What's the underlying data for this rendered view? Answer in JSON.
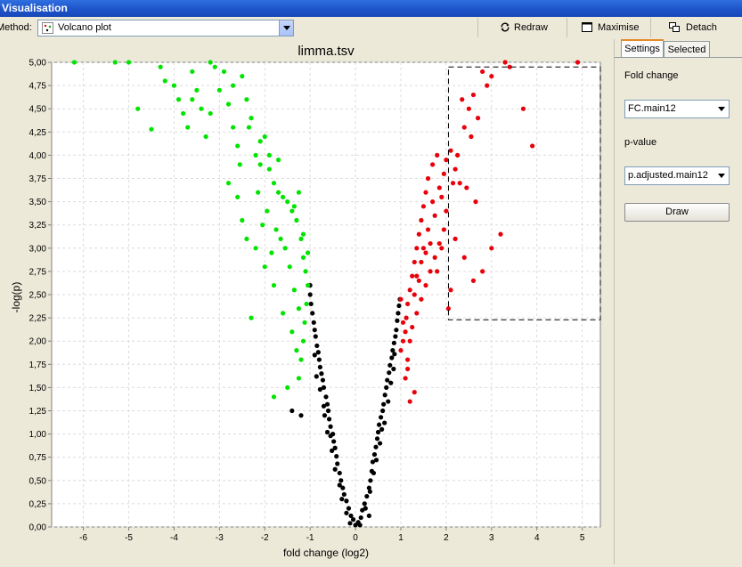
{
  "window": {
    "title": "Visualisation"
  },
  "toolbar": {
    "method_label": "Method:",
    "method_value": "Volcano plot",
    "redraw_label": "Redraw",
    "maximise_label": "Maximise",
    "detach_label": "Detach"
  },
  "panel": {
    "tabs": [
      {
        "label": "Settings",
        "active": true
      },
      {
        "label": "Selected",
        "active": false
      }
    ],
    "fold_change_label": "Fold change",
    "fold_change_value": "FC.main12",
    "pvalue_label": "p-value",
    "pvalue_value": "p.adjusted.main12",
    "draw_label": "Draw"
  },
  "colors": {
    "up": "#e8000a",
    "down": "#00e400",
    "neutral": "#000000",
    "accent": "#e68b2c"
  },
  "chart_data": {
    "type": "scatter",
    "title": "limma.tsv",
    "xlabel": "fold change (log2)",
    "ylabel": "-log(p)",
    "xlim": [
      -6.7,
      5.4
    ],
    "ylim": [
      0,
      5
    ],
    "xticks": [
      -6,
      -5,
      -4,
      -3,
      -2,
      -1,
      0,
      1,
      2,
      3,
      4,
      5
    ],
    "yticks": [
      "0,00",
      "0,25",
      "0,50",
      "0,75",
      "1,00",
      "1,25",
      "1,50",
      "1,75",
      "2,00",
      "2,25",
      "2,50",
      "2,75",
      "3,00",
      "3,25",
      "3,50",
      "3,75",
      "4,00",
      "4,25",
      "4,50",
      "4,75",
      "5,00"
    ],
    "grid": true,
    "selection_box": {
      "x": [
        2.05,
        5.4
      ],
      "y": [
        2.23,
        4.95
      ]
    },
    "series": [
      {
        "color": "neutral",
        "points": [
          [
            0.0,
            0.02
          ],
          [
            -0.05,
            0.08
          ],
          [
            0.06,
            0.05
          ],
          [
            -0.1,
            0.12
          ],
          [
            0.12,
            0.1
          ],
          [
            -0.15,
            0.2
          ],
          [
            0.15,
            0.18
          ],
          [
            -0.2,
            0.28
          ],
          [
            0.2,
            0.25
          ],
          [
            -0.25,
            0.35
          ],
          [
            0.25,
            0.33
          ],
          [
            -0.28,
            0.42
          ],
          [
            0.3,
            0.42
          ],
          [
            -0.32,
            0.5
          ],
          [
            0.33,
            0.5
          ],
          [
            -0.35,
            0.58
          ],
          [
            0.36,
            0.6
          ],
          [
            -0.4,
            0.68
          ],
          [
            0.38,
            0.7
          ],
          [
            -0.42,
            0.76
          ],
          [
            0.42,
            0.78
          ],
          [
            -0.45,
            0.85
          ],
          [
            0.45,
            0.86
          ],
          [
            -0.48,
            0.92
          ],
          [
            0.48,
            0.95
          ],
          [
            -0.5,
            1.0
          ],
          [
            0.5,
            1.02
          ],
          [
            -0.55,
            1.08
          ],
          [
            0.52,
            1.1
          ],
          [
            -0.58,
            1.16
          ],
          [
            0.56,
            1.18
          ],
          [
            -0.6,
            1.25
          ],
          [
            0.6,
            1.25
          ],
          [
            -0.62,
            1.32
          ],
          [
            0.62,
            1.32
          ],
          [
            -0.65,
            1.4
          ],
          [
            0.65,
            1.42
          ],
          [
            -0.7,
            1.5
          ],
          [
            0.68,
            1.5
          ],
          [
            -0.72,
            1.58
          ],
          [
            0.7,
            1.58
          ],
          [
            -0.75,
            1.65
          ],
          [
            0.74,
            1.66
          ],
          [
            -0.78,
            1.72
          ],
          [
            0.76,
            1.74
          ],
          [
            -0.8,
            1.8
          ],
          [
            0.8,
            1.82
          ],
          [
            -0.82,
            1.88
          ],
          [
            0.82,
            1.9
          ],
          [
            -0.85,
            1.95
          ],
          [
            0.85,
            1.98
          ],
          [
            -0.88,
            2.05
          ],
          [
            0.88,
            2.05
          ],
          [
            -0.9,
            2.12
          ],
          [
            0.9,
            2.12
          ],
          [
            -0.92,
            2.2
          ],
          [
            0.92,
            2.22
          ],
          [
            -0.95,
            2.3
          ],
          [
            0.94,
            2.3
          ],
          [
            -0.98,
            2.4
          ],
          [
            0.96,
            2.38
          ],
          [
            -1.0,
            2.5
          ],
          [
            0.98,
            2.45
          ],
          [
            -1.0,
            2.6
          ],
          [
            -0.3,
            0.3
          ],
          [
            0.32,
            0.38
          ],
          [
            -0.55,
            0.98
          ],
          [
            0.58,
            1.05
          ],
          [
            -0.68,
            1.2
          ],
          [
            0.72,
            1.35
          ],
          [
            -0.86,
            1.62
          ],
          [
            0.84,
            1.7
          ],
          [
            -0.2,
            0.15
          ],
          [
            0.22,
            0.2
          ],
          [
            -0.45,
            0.62
          ],
          [
            0.4,
            0.58
          ],
          [
            -0.62,
            1.02
          ],
          [
            0.64,
            1.12
          ],
          [
            -1.2,
            1.2
          ],
          [
            -1.4,
            1.25
          ],
          [
            -0.78,
            1.48
          ],
          [
            0.3,
            0.12
          ],
          [
            -0.12,
            0.04
          ],
          [
            0.1,
            0.02
          ],
          [
            -0.35,
            0.45
          ],
          [
            0.46,
            0.72
          ],
          [
            -0.52,
            0.82
          ],
          [
            0.54,
            0.9
          ],
          [
            -0.7,
            1.3
          ],
          [
            0.78,
            1.55
          ],
          [
            -0.9,
            1.85
          ],
          [
            0.86,
            1.86
          ]
        ]
      },
      {
        "color": "down",
        "points": [
          [
            -6.2,
            5.0
          ],
          [
            -5.3,
            5.0
          ],
          [
            -5.0,
            5.0
          ],
          [
            -4.5,
            4.28
          ],
          [
            -4.8,
            4.5
          ],
          [
            -4.2,
            4.8
          ],
          [
            -4.0,
            4.75
          ],
          [
            -3.9,
            4.6
          ],
          [
            -3.8,
            4.45
          ],
          [
            -3.7,
            4.3
          ],
          [
            -3.6,
            4.9
          ],
          [
            -3.5,
            4.7
          ],
          [
            -3.4,
            4.5
          ],
          [
            -3.3,
            4.2
          ],
          [
            -3.2,
            5.0
          ],
          [
            -3.0,
            4.7
          ],
          [
            -2.8,
            4.55
          ],
          [
            -2.7,
            4.3
          ],
          [
            -2.6,
            4.1
          ],
          [
            -2.5,
            4.85
          ],
          [
            -2.4,
            4.6
          ],
          [
            -2.3,
            4.4
          ],
          [
            -2.2,
            4.0
          ],
          [
            -2.1,
            3.9
          ],
          [
            -2.0,
            4.2
          ],
          [
            -1.9,
            3.85
          ],
          [
            -1.8,
            3.7
          ],
          [
            -1.7,
            3.6
          ],
          [
            -1.6,
            3.55
          ],
          [
            -1.5,
            3.5
          ],
          [
            -1.4,
            3.4
          ],
          [
            -1.3,
            3.3
          ],
          [
            -1.2,
            3.1
          ],
          [
            -1.15,
            2.9
          ],
          [
            -1.1,
            2.75
          ],
          [
            -1.05,
            2.6
          ],
          [
            -1.08,
            2.4
          ],
          [
            -1.12,
            2.2
          ],
          [
            -1.15,
            2.0
          ],
          [
            -1.2,
            1.8
          ],
          [
            -1.25,
            1.6
          ],
          [
            -2.8,
            3.7
          ],
          [
            -2.6,
            3.55
          ],
          [
            -2.5,
            3.3
          ],
          [
            -2.4,
            3.1
          ],
          [
            -2.2,
            3.0
          ],
          [
            -2.0,
            2.8
          ],
          [
            -1.8,
            2.6
          ],
          [
            -1.6,
            2.3
          ],
          [
            -1.4,
            2.1
          ],
          [
            -1.3,
            1.9
          ],
          [
            -2.3,
            2.25
          ],
          [
            -1.8,
            1.4
          ],
          [
            -1.5,
            1.5
          ],
          [
            -3.1,
            4.95
          ],
          [
            -2.9,
            4.9
          ],
          [
            -4.3,
            4.95
          ],
          [
            -3.6,
            4.6
          ],
          [
            -2.7,
            4.75
          ],
          [
            -2.1,
            4.15
          ],
          [
            -1.9,
            4.0
          ],
          [
            -1.7,
            3.95
          ],
          [
            -1.75,
            3.2
          ],
          [
            -1.55,
            3.0
          ],
          [
            -1.45,
            2.8
          ],
          [
            -1.35,
            2.55
          ],
          [
            -1.25,
            2.35
          ],
          [
            -1.95,
            3.4
          ],
          [
            -2.15,
            3.6
          ],
          [
            -1.65,
            3.1
          ],
          [
            -1.85,
            2.95
          ],
          [
            -2.05,
            3.25
          ],
          [
            -1.35,
            3.45
          ],
          [
            -1.25,
            3.6
          ],
          [
            -1.15,
            3.15
          ],
          [
            -1.05,
            2.95
          ],
          [
            -2.55,
            3.9
          ],
          [
            -2.35,
            4.3
          ],
          [
            -3.2,
            4.45
          ]
        ]
      },
      {
        "color": "up",
        "points": [
          [
            1.0,
            1.9
          ],
          [
            1.05,
            2.0
          ],
          [
            1.1,
            2.1
          ],
          [
            1.12,
            2.25
          ],
          [
            1.15,
            2.4
          ],
          [
            1.2,
            2.55
          ],
          [
            1.25,
            2.7
          ],
          [
            1.3,
            2.85
          ],
          [
            1.35,
            3.0
          ],
          [
            1.4,
            3.15
          ],
          [
            1.45,
            3.3
          ],
          [
            1.5,
            3.45
          ],
          [
            1.55,
            3.6
          ],
          [
            1.6,
            3.75
          ],
          [
            1.7,
            3.9
          ],
          [
            1.8,
            4.0
          ],
          [
            1.9,
            3.55
          ],
          [
            2.0,
            3.4
          ],
          [
            1.95,
            3.2
          ],
          [
            1.85,
            3.05
          ],
          [
            1.75,
            2.9
          ],
          [
            1.65,
            2.75
          ],
          [
            1.55,
            2.6
          ],
          [
            1.45,
            2.45
          ],
          [
            1.35,
            2.3
          ],
          [
            1.25,
            2.15
          ],
          [
            1.15,
            1.8
          ],
          [
            1.1,
            1.6
          ],
          [
            1.2,
            1.35
          ],
          [
            1.3,
            1.45
          ],
          [
            1.15,
            1.7
          ],
          [
            2.1,
            4.05
          ],
          [
            2.2,
            3.85
          ],
          [
            2.3,
            3.7
          ],
          [
            2.4,
            4.3
          ],
          [
            2.5,
            4.5
          ],
          [
            2.6,
            4.65
          ],
          [
            2.7,
            4.4
          ],
          [
            2.8,
            4.9
          ],
          [
            3.0,
            4.85
          ],
          [
            3.3,
            5.0
          ],
          [
            3.7,
            4.5
          ],
          [
            3.9,
            4.1
          ],
          [
            2.2,
            3.1
          ],
          [
            2.4,
            2.9
          ],
          [
            2.6,
            2.65
          ],
          [
            2.8,
            2.75
          ],
          [
            3.0,
            3.0
          ],
          [
            3.2,
            3.15
          ],
          [
            2.1,
            2.55
          ],
          [
            2.05,
            2.35
          ],
          [
            2.15,
            3.7
          ],
          [
            2.35,
            4.6
          ],
          [
            2.55,
            4.2
          ],
          [
            2.9,
            4.75
          ],
          [
            3.4,
            4.95
          ],
          [
            4.9,
            5.0
          ],
          [
            1.6,
            3.2
          ],
          [
            1.7,
            3.5
          ],
          [
            1.8,
            2.75
          ],
          [
            1.9,
            3.0
          ],
          [
            1.5,
            3.0
          ],
          [
            1.4,
            2.65
          ],
          [
            1.3,
            2.5
          ],
          [
            1.2,
            2.0
          ],
          [
            1.0,
            2.45
          ],
          [
            1.05,
            2.2
          ],
          [
            1.75,
            3.35
          ],
          [
            1.65,
            3.05
          ],
          [
            1.55,
            2.95
          ],
          [
            1.85,
            3.65
          ],
          [
            1.45,
            2.85
          ],
          [
            1.35,
            2.7
          ],
          [
            2.0,
            3.95
          ],
          [
            1.95,
            3.8
          ],
          [
            2.25,
            4.0
          ],
          [
            2.45,
            3.65
          ],
          [
            2.65,
            3.5
          ]
        ]
      }
    ]
  }
}
